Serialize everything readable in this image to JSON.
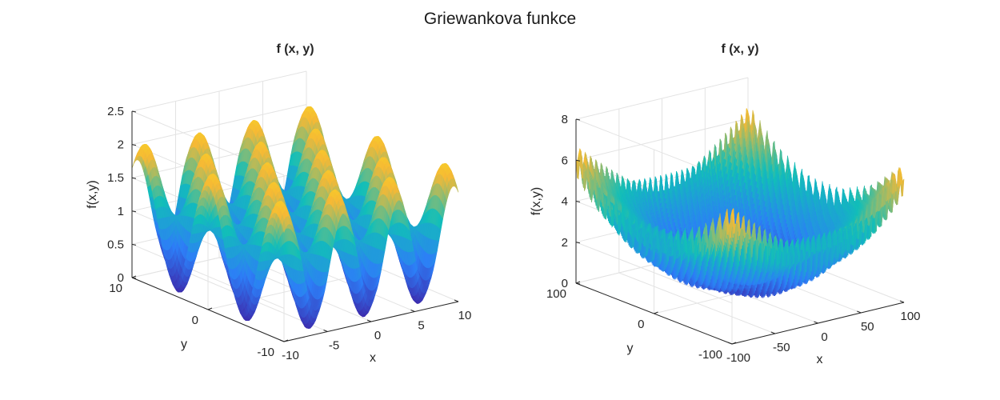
{
  "figure": {
    "title": "Griewankova funkce"
  },
  "chart_data": [
    {
      "type": "surface",
      "function": "griewank",
      "title": "f (x, y)",
      "xlabel": "x",
      "ylabel": "y",
      "zlabel": "f(x,y)",
      "xlim": [
        -10,
        10
      ],
      "ylim": [
        -10,
        10
      ],
      "zlim": [
        0,
        2.5
      ],
      "xticks": [
        -10,
        -5,
        0,
        5,
        10
      ],
      "yticks": [
        -10,
        0,
        10
      ],
      "zticks": [
        0,
        0.5,
        1,
        1.5,
        2,
        2.5
      ],
      "xtick_labels": [
        "-10",
        "-5",
        "0",
        "5",
        "10"
      ],
      "ytick_labels": [
        "-10",
        "0",
        "10"
      ],
      "ztick_labels": [
        "0",
        "0.5",
        "1",
        "1.5",
        "2",
        "2.5"
      ],
      "grid": true,
      "colormap": "parula",
      "colors": [
        "#3e26a8",
        "#2d7ef7",
        "#12beb9",
        "#f6b935",
        "#f9fb0e"
      ]
    },
    {
      "type": "surface",
      "function": "griewank",
      "title": "f (x, y)",
      "xlabel": "x",
      "ylabel": "y",
      "zlabel": "f(x,y)",
      "xlim": [
        -100,
        100
      ],
      "ylim": [
        -100,
        100
      ],
      "zlim": [
        0,
        8
      ],
      "xticks": [
        -100,
        -50,
        0,
        50,
        100
      ],
      "yticks": [
        -100,
        0,
        100
      ],
      "zticks": [
        0,
        2,
        4,
        6,
        8
      ],
      "xtick_labels": [
        "-100",
        "-50",
        "0",
        "50",
        "100"
      ],
      "ytick_labels": [
        "-100",
        "0",
        "100"
      ],
      "ztick_labels": [
        "0",
        "2",
        "4",
        "6",
        "8"
      ],
      "grid": true,
      "colormap": "parula",
      "colors": [
        "#3e26a8",
        "#2d7ef7",
        "#12beb9",
        "#f6b935",
        "#f9fb0e"
      ]
    }
  ]
}
